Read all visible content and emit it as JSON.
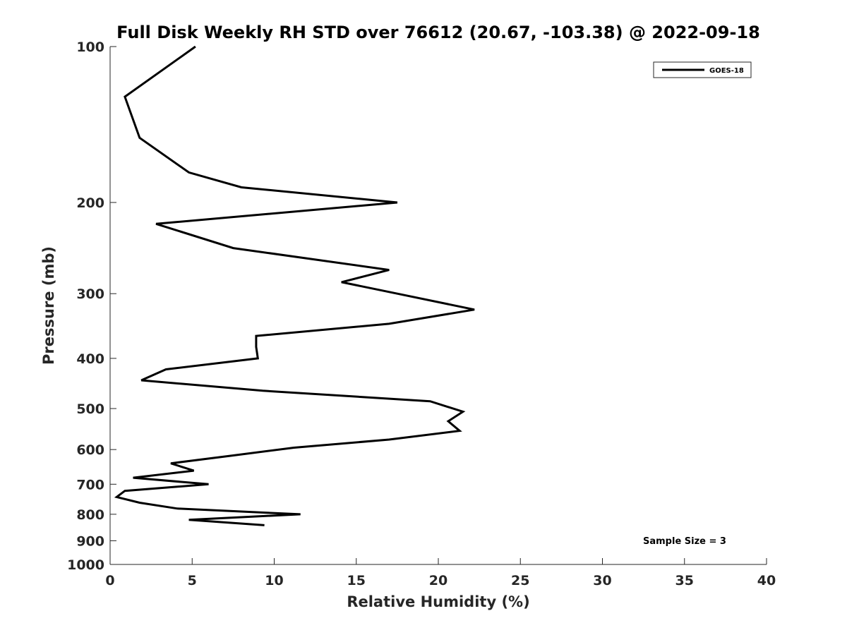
{
  "chart_data": {
    "type": "line",
    "title": "Full Disk Weekly RH STD over 76612 (20.67, -103.38) @ 2022-09-18",
    "xlabel": "Relative Humidity (%)",
    "ylabel": "Pressure (mb)",
    "xlim": [
      0,
      40
    ],
    "ylim": [
      100,
      1000
    ],
    "y_scale": "log",
    "y_reversed": true,
    "x_ticks": [
      0,
      5,
      10,
      15,
      20,
      25,
      30,
      35,
      40
    ],
    "y_ticks": [
      100,
      200,
      300,
      400,
      500,
      600,
      700,
      800,
      900,
      1000
    ],
    "grid": false,
    "legend_position": "top-right",
    "annotation": "Sample Size = 3",
    "series": [
      {
        "name": "GOES-18",
        "color": "#000000",
        "points": [
          [
            5.2,
            100
          ],
          [
            0.9,
            125
          ],
          [
            1.8,
            150
          ],
          [
            4.8,
            175
          ],
          [
            8.0,
            187
          ],
          [
            17.5,
            200
          ],
          [
            2.8,
            220
          ],
          [
            7.5,
            245
          ],
          [
            17.0,
            270
          ],
          [
            14.1,
            285
          ],
          [
            17.5,
            300
          ],
          [
            22.2,
            322
          ],
          [
            17.0,
            343
          ],
          [
            8.9,
            362
          ],
          [
            8.9,
            380
          ],
          [
            9.0,
            400
          ],
          [
            3.4,
            420
          ],
          [
            1.9,
            441
          ],
          [
            9.3,
            462
          ],
          [
            19.5,
            484
          ],
          [
            21.5,
            507
          ],
          [
            20.6,
            529
          ],
          [
            21.3,
            552
          ],
          [
            17.0,
            574
          ],
          [
            11.2,
            595
          ],
          [
            7.3,
            617
          ],
          [
            3.7,
            638
          ],
          [
            5.1,
            659
          ],
          [
            1.4,
            680
          ],
          [
            6.0,
            700
          ],
          [
            0.9,
            721
          ],
          [
            0.4,
            741
          ],
          [
            1.8,
            760
          ],
          [
            4.1,
            780
          ],
          [
            11.6,
            800
          ],
          [
            4.8,
            820
          ],
          [
            9.4,
            840
          ]
        ]
      }
    ]
  }
}
